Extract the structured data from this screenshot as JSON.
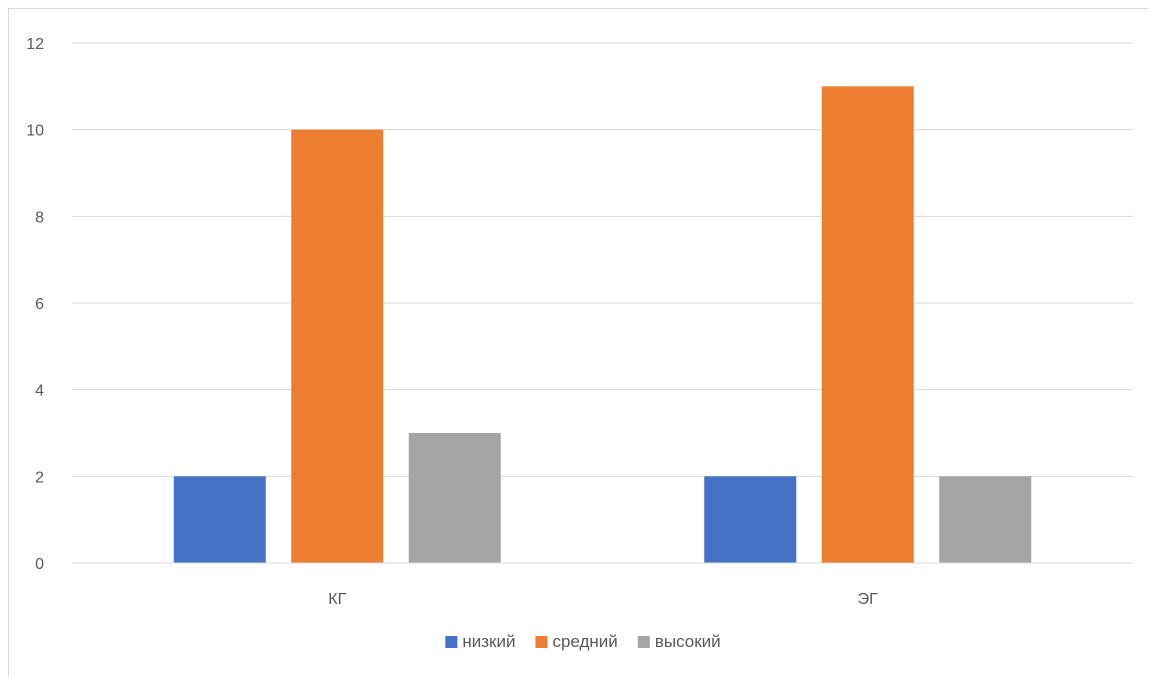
{
  "chart_data": {
    "type": "bar",
    "categories": [
      "КГ",
      "ЭГ"
    ],
    "series": [
      {
        "name": "низкий",
        "values": [
          2,
          2
        ],
        "color": "#4472c4"
      },
      {
        "name": "средний",
        "values": [
          10,
          11
        ],
        "color": "#ed7d31"
      },
      {
        "name": "высокий",
        "values": [
          3,
          2
        ],
        "color": "#a5a5a5"
      }
    ],
    "title": "",
    "xlabel": "",
    "ylabel": "",
    "ylim": [
      0,
      12
    ],
    "yticks": [
      "0",
      "2",
      "4",
      "6",
      "8",
      "10",
      "12"
    ],
    "grid": true,
    "legend": "bottom",
    "gridColor": "#d9d9d9",
    "axisColor": "#d9d9d9",
    "textColor": "#595959"
  }
}
